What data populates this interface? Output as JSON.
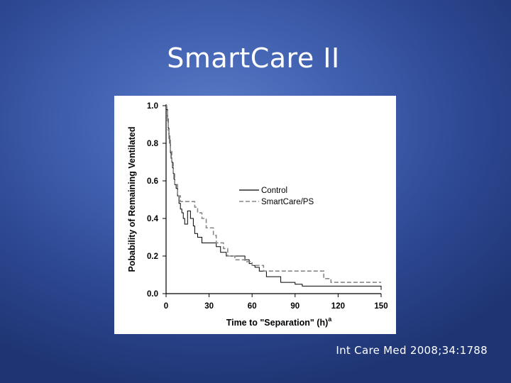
{
  "slide": {
    "title": "SmartCare II",
    "citation": "Int Care Med 2008;34:1788"
  },
  "colors": {
    "background": "#3f5fae",
    "control": "#000000",
    "smartcare": "#888888"
  },
  "chart_data": {
    "type": "line",
    "title": "",
    "xlabel": "Time to \"Separation\" (h)",
    "xlabel_superscript": "a",
    "ylabel": "Pobability of Remaining Ventilated",
    "xlim": [
      0,
      150
    ],
    "ylim": [
      0,
      1.0
    ],
    "xticks": [
      0,
      30,
      60,
      90,
      120,
      150
    ],
    "xtick_labels": [
      "0",
      "30",
      "60",
      "90",
      "120",
      "150"
    ],
    "yticks": [
      0.0,
      0.2,
      0.4,
      0.6,
      0.8,
      1.0
    ],
    "ytick_labels": [
      "0.0",
      "0.2",
      "0.4",
      "0.6",
      "0.8",
      "1.0"
    ],
    "legend_position": "center-right",
    "grid": false,
    "series": [
      {
        "name": "Control",
        "style": "solid",
        "x": [
          0,
          0.5,
          1,
          1.5,
          2,
          2.5,
          3,
          3.5,
          4,
          4.5,
          5,
          5.5,
          6,
          7,
          8,
          9,
          10,
          11,
          12,
          13,
          15,
          17,
          19,
          20,
          22,
          25,
          30,
          35,
          38,
          42,
          45,
          50,
          55,
          58,
          60,
          62,
          65,
          70,
          80,
          90,
          95,
          110,
          120,
          148,
          150
        ],
        "y": [
          1.0,
          0.98,
          0.93,
          0.88,
          0.84,
          0.8,
          0.75,
          0.72,
          0.7,
          0.67,
          0.64,
          0.61,
          0.58,
          0.56,
          0.52,
          0.48,
          0.45,
          0.43,
          0.4,
          0.37,
          0.44,
          0.4,
          0.36,
          0.32,
          0.3,
          0.27,
          0.27,
          0.25,
          0.22,
          0.2,
          0.2,
          0.2,
          0.18,
          0.16,
          0.15,
          0.14,
          0.12,
          0.09,
          0.06,
          0.05,
          0.04,
          0.04,
          0.04,
          0.04,
          0.02
        ]
      },
      {
        "name": "SmartCare/PS",
        "style": "dashed",
        "x": [
          0,
          0.5,
          1,
          1.5,
          2,
          3,
          4,
          5,
          6,
          8,
          10,
          20,
          22,
          25,
          28,
          33,
          35,
          40,
          43,
          48,
          55,
          60,
          68,
          70,
          80,
          100,
          110,
          112,
          115,
          150
        ],
        "y": [
          1.0,
          0.97,
          0.92,
          0.87,
          0.82,
          0.76,
          0.7,
          0.64,
          0.58,
          0.52,
          0.49,
          0.46,
          0.43,
          0.4,
          0.35,
          0.31,
          0.27,
          0.24,
          0.2,
          0.18,
          0.17,
          0.15,
          0.12,
          0.12,
          0.12,
          0.12,
          0.08,
          0.08,
          0.06,
          0.06
        ]
      }
    ]
  }
}
